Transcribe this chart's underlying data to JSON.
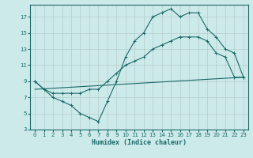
{
  "xlabel": "Humidex (Indice chaleur)",
  "bg_color": "#cdeaea",
  "grid_color": "#b8d0d0",
  "line_color": "#1a6868",
  "xlim": [
    -0.5,
    23.5
  ],
  "ylim": [
    3,
    18.5
  ],
  "xticks": [
    0,
    1,
    2,
    3,
    4,
    5,
    6,
    7,
    8,
    9,
    10,
    11,
    12,
    13,
    14,
    15,
    16,
    17,
    18,
    19,
    20,
    21,
    22,
    23
  ],
  "yticks": [
    3,
    5,
    7,
    9,
    11,
    13,
    15,
    17
  ],
  "line1_x": [
    0,
    1,
    2,
    3,
    4,
    5,
    6,
    7,
    8,
    9,
    10,
    11,
    12,
    13,
    14,
    15,
    16,
    17,
    18,
    19,
    20,
    21,
    22,
    23
  ],
  "line1_y": [
    9,
    8,
    7,
    6.5,
    6,
    5,
    4.5,
    4,
    6.5,
    9,
    12,
    14,
    15,
    17,
    17.5,
    18,
    17,
    17.5,
    17.5,
    15.5,
    14.5,
    13,
    12.5,
    9.5
  ],
  "line2_x": [
    0,
    1,
    2,
    3,
    4,
    5,
    6,
    7,
    8,
    9,
    10,
    11,
    12,
    13,
    14,
    15,
    16,
    17,
    18,
    19,
    20,
    21,
    22,
    23
  ],
  "line2_y": [
    9,
    8,
    7.5,
    7.5,
    7.5,
    7.5,
    8,
    8,
    9,
    10,
    11,
    11.5,
    12,
    13,
    13.5,
    14,
    14.5,
    14.5,
    14.5,
    14,
    12.5,
    12,
    9.5,
    9.5
  ],
  "line3_x": [
    0,
    23
  ],
  "line3_y": [
    8,
    9.5
  ]
}
